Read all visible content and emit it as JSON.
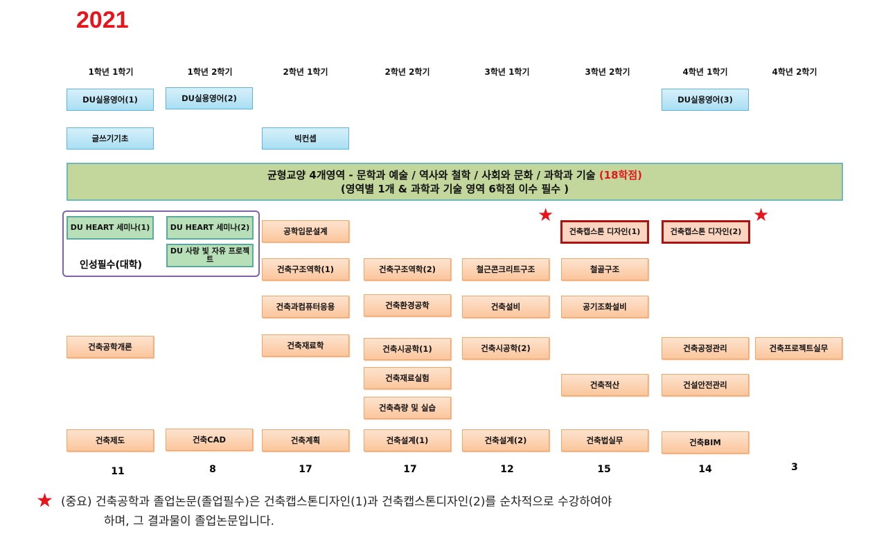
{
  "title": "2021",
  "semesters": [
    "1학년 1학기",
    "1학년 2학기",
    "2학년 1학기",
    "2학년 2학기",
    "3학년 1학기",
    "3학년 2학기",
    "4학년 1학기",
    "4학년 2학기"
  ],
  "general": {
    "eng1": "DU실용영어(1)",
    "eng2": "DU실용영어(2)",
    "eng3": "DU실용영어(3)",
    "writing": "글쓰기기초",
    "bigconcept": "빅컨셉"
  },
  "banner": {
    "line1": "균형교양   4개영역   - 문학과 예술 / 역사와 철학 /  사회와 문화 / 과학과 기술 ",
    "line1_credit": "(18학점)",
    "line2": "(영역별 1개 & 과학과 기술 영역  6학점 이수 필수 )"
  },
  "character": {
    "label": "인성필수(대학)",
    "heart1": "DU HEART 세미나(1)",
    "heart2": "DU HEART 세미나(2)",
    "love": "DU 사랑 빛 자유 프로젝트"
  },
  "courses": {
    "c1": "공학입문설계",
    "cap1": "건축캡스톤 디자인(1)",
    "cap2": "건축캡스톤 디자인(2)",
    "c2": "건축구조역학(1)",
    "c3": "건축구조역학(2)",
    "c4": "철근콘크리트구조",
    "c5": "철골구조",
    "c6": "건축과컴퓨터응용",
    "c7": "건축환경공학",
    "c8": "건축설비",
    "c9": "공기조화설비",
    "c10": "건축공학개론",
    "c11": "건축재료학",
    "c12": "건축시공학(1)",
    "c13": "건축시공학(2)",
    "c14": "건축공정관리",
    "c15": "건축프로젝트실무",
    "c16": "건축재료실험",
    "c17": "건축적산",
    "c18": "건설안전관리",
    "c19": "건축측량 및 실습",
    "c20": "건축제도",
    "c21": "건축CAD",
    "c22": "건축계획",
    "c23": "건축설계(1)",
    "c24": "건축설계(2)",
    "c25": "건축법실무",
    "c26": "건축BIM"
  },
  "credits": [
    "11",
    "8",
    "17",
    "17",
    "12",
    "15",
    "14",
    "3"
  ],
  "footnote": {
    "star": "★",
    "line1": "(중요) 건축공학과 졸업논문(졸업필수)은 건축캡스톤디자인(1)과 건축캡스톤디자인(2)를 순차적으로 수강하여야",
    "line2": "하며, 그 결과물이 졸업논문입니다."
  },
  "colors": {
    "accent": "#e8141b",
    "capstone_border": "#b01010",
    "banner": "#c3d69b"
  }
}
